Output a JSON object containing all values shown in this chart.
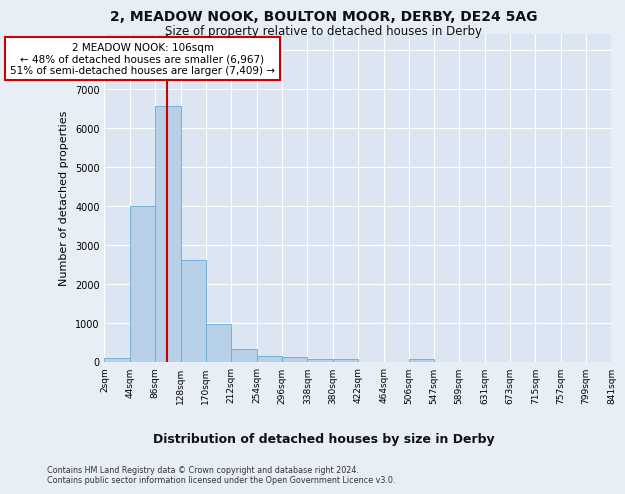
{
  "title_line1": "2, MEADOW NOOK, BOULTON MOOR, DERBY, DE24 5AG",
  "title_line2": "Size of property relative to detached houses in Derby",
  "xlabel": "Distribution of detached houses by size in Derby",
  "ylabel": "Number of detached properties",
  "footnote": "Contains HM Land Registry data © Crown copyright and database right 2024.\nContains public sector information licensed under the Open Government Licence v3.0.",
  "bar_edges": [
    2,
    44,
    86,
    128,
    170,
    212,
    254,
    296,
    338,
    380,
    422,
    464,
    506,
    547,
    589,
    631,
    673,
    715,
    757,
    799,
    841
  ],
  "bar_heights": [
    80,
    4000,
    6560,
    2600,
    960,
    320,
    140,
    120,
    70,
    60,
    0,
    0,
    60,
    0,
    0,
    0,
    0,
    0,
    0,
    0
  ],
  "bar_color": "#b8cfe8",
  "bar_edgecolor": "#6aaad4",
  "vline_x": 106,
  "vline_color": "#cc0000",
  "annotation_text": "2 MEADOW NOOK: 106sqm\n← 48% of detached houses are smaller (6,967)\n51% of semi-detached houses are larger (7,409) →",
  "box_color": "#cc0000",
  "ylim": [
    0,
    8400
  ],
  "yticks": [
    0,
    1000,
    2000,
    3000,
    4000,
    5000,
    6000,
    7000,
    8000
  ],
  "bg_color": "#e8eef6",
  "plot_bg": "#dce6f2",
  "grid_color": "#ffffff",
  "tick_labels": [
    "2sqm",
    "44sqm",
    "86sqm",
    "128sqm",
    "170sqm",
    "212sqm",
    "254sqm",
    "296sqm",
    "338sqm",
    "380sqm",
    "422sqm",
    "464sqm",
    "506sqm",
    "547sqm",
    "589sqm",
    "631sqm",
    "673sqm",
    "715sqm",
    "757sqm",
    "799sqm",
    "841sqm"
  ]
}
